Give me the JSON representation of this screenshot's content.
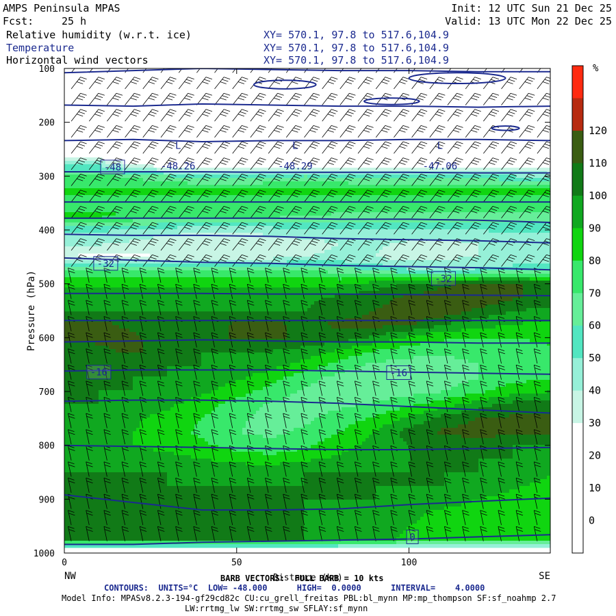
{
  "header": {
    "model": "AMPS Peninsula MPAS",
    "init": "Init: 12 UTC Sun 21 Dec 25",
    "fcst_label": "Fcst:",
    "fcst_value": "25 h",
    "valid": "Valid: 13 UTC Mon 22 Dec 25",
    "fields": [
      {
        "name": "Relative humidity (w.r.t. ice)",
        "xy": "XY= 570.1, 97.8 to 517.6,104.9"
      },
      {
        "name": "Temperature",
        "xy": "XY= 570.1, 97.8 to 517.6,104.9"
      },
      {
        "name": "Horizontal wind vectors",
        "xy": "XY= 570.1, 97.8 to 517.6,104.9"
      }
    ]
  },
  "colors": {
    "contour": "#1b2a8f",
    "colorbar": [
      "#ffffff",
      "#ffffff",
      "#ffffff",
      "#ffffff",
      "#c8f5e5",
      "#96f0d8",
      "#52e6c1",
      "#66ee99",
      "#38e86b",
      "#10d510",
      "#10a820",
      "#117a17",
      "#3a5d12",
      "#b72b10",
      "#ff2b10"
    ]
  },
  "chart_data": {
    "type": "heatmap",
    "title": "Relative humidity (w.r.t. ice)",
    "xlabel": "Distance (km)",
    "ylabel": "Pressure (hPa)",
    "xlim": [
      0,
      141
    ],
    "ylim": [
      1000,
      100
    ],
    "x_ticks": [
      0,
      50,
      100
    ],
    "y_ticks": [
      100,
      200,
      300,
      400,
      500,
      600,
      700,
      800,
      900,
      1000
    ],
    "x_end_labels": {
      "left": "NW",
      "right": "SE"
    },
    "colorbar": {
      "unit": "%",
      "levels": [
        -10,
        0,
        10,
        20,
        30,
        40,
        50,
        60,
        70,
        80,
        90,
        100,
        110,
        120,
        130
      ],
      "tick_labels": [
        0,
        10,
        20,
        30,
        40,
        50,
        60,
        70,
        80,
        90,
        100,
        110,
        120
      ]
    },
    "rh_field": {
      "x": [
        0,
        10,
        20,
        30,
        40,
        50,
        60,
        70,
        80,
        90,
        100,
        110,
        120,
        130,
        141
      ],
      "p": [
        100,
        150,
        200,
        250,
        275,
        300,
        325,
        350,
        375,
        400,
        425,
        450,
        475,
        500,
        525,
        550,
        575,
        600,
        625,
        650,
        675,
        700,
        725,
        750,
        775,
        800,
        825,
        850,
        875,
        900,
        925,
        950,
        975,
        1000
      ],
      "rows": [
        [
          -5,
          -5,
          -5,
          -5,
          -5,
          -5,
          -5,
          -5,
          -5,
          -5,
          -5,
          -5,
          -5,
          -5,
          -5
        ],
        [
          -5,
          -5,
          -5,
          -5,
          -5,
          -5,
          -5,
          -5,
          -5,
          -5,
          -5,
          -5,
          -5,
          -5,
          -5
        ],
        [
          -5,
          -5,
          -5,
          -5,
          -5,
          -5,
          -5,
          -5,
          -5,
          -5,
          -5,
          -5,
          -5,
          -5,
          -5
        ],
        [
          -5,
          -5,
          -5,
          -5,
          -5,
          -5,
          -5,
          -5,
          -5,
          -5,
          -5,
          -5,
          -5,
          -5,
          -5
        ],
        [
          45,
          45,
          25,
          15,
          15,
          15,
          15,
          15,
          15,
          15,
          15,
          15,
          15,
          15,
          15
        ],
        [
          72,
          72,
          68,
          60,
          55,
          55,
          58,
          60,
          58,
          55,
          55,
          55,
          55,
          50,
          48
        ],
        [
          82,
          82,
          82,
          82,
          82,
          82,
          82,
          82,
          82,
          82,
          82,
          82,
          82,
          82,
          82
        ],
        [
          76,
          76,
          76,
          76,
          76,
          76,
          76,
          76,
          76,
          76,
          76,
          76,
          76,
          76,
          76
        ],
        [
          82,
          82,
          80,
          78,
          76,
          74,
          72,
          70,
          68,
          66,
          66,
          66,
          66,
          66,
          66
        ],
        [
          52,
          52,
          48,
          45,
          42,
          42,
          45,
          48,
          50,
          50,
          48,
          48,
          50,
          52,
          52
        ],
        [
          42,
          42,
          38,
          34,
          30,
          30,
          32,
          36,
          40,
          42,
          38,
          36,
          40,
          44,
          46
        ],
        [
          30,
          25,
          28,
          30,
          32,
          34,
          36,
          40,
          42,
          40,
          34,
          38,
          40,
          42,
          44
        ],
        [
          72,
          72,
          72,
          72,
          72,
          72,
          72,
          70,
          66,
          58,
          52,
          48,
          52,
          55,
          60
        ],
        [
          88,
          88,
          88,
          88,
          88,
          88,
          88,
          88,
          88,
          95,
          100,
          108,
          112,
          112,
          105
        ],
        [
          98,
          98,
          98,
          98,
          98,
          98,
          98,
          98,
          102,
          106,
          112,
          116,
          118,
          112,
          104
        ],
        [
          100,
          100,
          100,
          100,
          100,
          100,
          100,
          100,
          104,
          110,
          116,
          118,
          108,
          100,
          98
        ],
        [
          112,
          112,
          108,
          104,
          104,
          112,
          112,
          108,
          112,
          114,
          112,
          100,
          95,
          90,
          88
        ],
        [
          112,
          112,
          112,
          104,
          104,
          112,
          112,
          108,
          106,
          98,
          88,
          82,
          80,
          80,
          82
        ],
        [
          106,
          108,
          112,
          104,
          100,
          100,
          100,
          96,
          88,
          80,
          74,
          72,
          74,
          76,
          78
        ],
        [
          100,
          100,
          100,
          100,
          100,
          98,
          94,
          86,
          76,
          68,
          66,
          66,
          70,
          74,
          78
        ],
        [
          100,
          100,
          100,
          100,
          98,
          92,
          84,
          74,
          66,
          62,
          62,
          64,
          70,
          76,
          80
        ],
        [
          100,
          100,
          100,
          98,
          92,
          84,
          76,
          68,
          64,
          64,
          66,
          70,
          78,
          86,
          90
        ],
        [
          100,
          100,
          98,
          92,
          84,
          76,
          68,
          66,
          68,
          72,
          78,
          86,
          96,
          104,
          106
        ],
        [
          98,
          96,
          92,
          86,
          80,
          72,
          66,
          68,
          74,
          82,
          92,
          104,
          110,
          112,
          112
        ],
        [
          96,
          94,
          90,
          84,
          78,
          70,
          68,
          72,
          80,
          90,
          104,
          112,
          114,
          114,
          114
        ],
        [
          96,
          94,
          90,
          86,
          82,
          76,
          72,
          78,
          86,
          94,
          100,
          104,
          104,
          100,
          100
        ],
        [
          98,
          98,
          96,
          94,
          90,
          86,
          84,
          88,
          92,
          98,
          100,
          100,
          100,
          100,
          98
        ],
        [
          100,
          100,
          100,
          100,
          98,
          98,
          98,
          100,
          100,
          100,
          100,
          100,
          100,
          98,
          92
        ],
        [
          100,
          100,
          100,
          100,
          100,
          100,
          100,
          100,
          100,
          100,
          100,
          100,
          98,
          92,
          86
        ],
        [
          100,
          100,
          100,
          100,
          100,
          100,
          100,
          100,
          100,
          100,
          98,
          94,
          90,
          86,
          84
        ],
        [
          100,
          100,
          100,
          100,
          100,
          100,
          100,
          100,
          98,
          96,
          92,
          88,
          86,
          84,
          84
        ],
        [
          100,
          100,
          100,
          100,
          100,
          100,
          100,
          100,
          98,
          94,
          90,
          88,
          86,
          86,
          86
        ],
        [
          100,
          100,
          100,
          100,
          100,
          100,
          100,
          100,
          98,
          94,
          88,
          86,
          84,
          84,
          84
        ],
        [
          -5,
          -5,
          -5,
          -5,
          -5,
          -5,
          -5,
          -5,
          -5,
          -5,
          -5,
          -5,
          -5,
          -5,
          -5
        ]
      ]
    },
    "temperature_contours": {
      "units": "°C",
      "low": -48.0,
      "high": 0.0,
      "interval": 4.0,
      "x": [
        0,
        20,
        40,
        60,
        80,
        100,
        120,
        141
      ],
      "lines": [
        {
          "p": [
            108,
            104,
            100,
            102,
            104,
            104,
            106,
            106
          ]
        },
        {
          "p": [
            168,
            170,
            166,
            168,
            170,
            170,
            172,
            170
          ]
        },
        {
          "p": [
            234,
            232,
            236,
            234,
            234,
            232,
            232,
            234
          ]
        },
        {
          "p": [
            292,
            292,
            292,
            293,
            293,
            293,
            294,
            294
          ]
        },
        {
          "p": [
            348,
            348,
            348,
            348,
            348,
            348,
            348,
            348
          ]
        },
        {
          "p": [
            378,
            378,
            378,
            378,
            380,
            380,
            382,
            386
          ]
        },
        {
          "p": [
            408,
            410,
            410,
            412,
            416,
            418,
            420,
            424
          ]
        },
        {
          "p": [
            452,
            456,
            460,
            462,
            466,
            468,
            470,
            474
          ]
        },
        {
          "p": [
            518,
            518,
            518,
            519,
            519,
            520,
            521,
            522
          ]
        },
        {
          "p": [
            568,
            568,
            568,
            568,
            568,
            568,
            568,
            568
          ]
        },
        {
          "p": [
            608,
            606,
            604,
            606,
            608,
            608,
            610,
            610
          ]
        },
        {
          "p": [
            662,
            660,
            660,
            660,
            662,
            664,
            666,
            668
          ]
        },
        {
          "p": [
            718,
            716,
            716,
            718,
            722,
            728,
            734,
            740
          ]
        },
        {
          "p": [
            800,
            802,
            804,
            806,
            808,
            808,
            806,
            804
          ]
        },
        {
          "p": [
            892,
            906,
            920,
            920,
            918,
            910,
            904,
            898
          ]
        },
        {
          "p": [
            984,
            984,
            980,
            978,
            976,
            974,
            970,
            966
          ]
        }
      ],
      "labels": [
        {
          "text": "-48",
          "x": 14,
          "p": 283
        },
        {
          "text": "-32",
          "x": 12,
          "p": 462
        },
        {
          "text": "-32",
          "x": 110,
          "p": 490
        },
        {
          "text": "-16",
          "x": 10,
          "p": 664
        },
        {
          "text": "-16",
          "x": 97,
          "p": 665
        },
        {
          "text": "0",
          "x": 101,
          "p": 970
        }
      ],
      "lows": [
        {
          "label": "L",
          "value": "-48.26",
          "x": 33,
          "p": 272
        },
        {
          "label": "L",
          "value": "-48.29",
          "x": 67,
          "p": 272
        },
        {
          "label": "L",
          "value": "-47.06",
          "x": 109,
          "p": 272
        }
      ]
    },
    "wind_barbs": {
      "barb_vector_full_barb_kts": 10
    }
  },
  "axes": {
    "ylabel": "Pressure (hPa)",
    "xlabel": "Distance (km)",
    "x_ticks": [
      "0",
      "50",
      "100"
    ],
    "y_ticks": [
      "100",
      "200",
      "300",
      "400",
      "500",
      "600",
      "700",
      "800",
      "900",
      "1000"
    ],
    "left_end": "NW",
    "right_end": "SE",
    "colorbar_unit": "%",
    "colorbar_ticks": [
      "0",
      "10",
      "20",
      "30",
      "40",
      "50",
      "60",
      "70",
      "80",
      "90",
      "100",
      "110",
      "120"
    ]
  },
  "footer": {
    "barb": "BARB VECTORS:  FULL BARB = 10 kts",
    "contours": "CONTOURS:  UNITS=°C  LOW= -48.000      HIGH=  0.0000      INTERVAL=    4.0000",
    "model_info": "Model Info: MPASv8.2.3-194-gf29cd82c CU:cu_grell_freitas PBL:bl_mynn MP:mp_thompson SF:sf_noahmp 2.7",
    "model_info2": "LW:rrtmg_lw SW:rrtmg_sw SFLAY:sf_mynn"
  }
}
